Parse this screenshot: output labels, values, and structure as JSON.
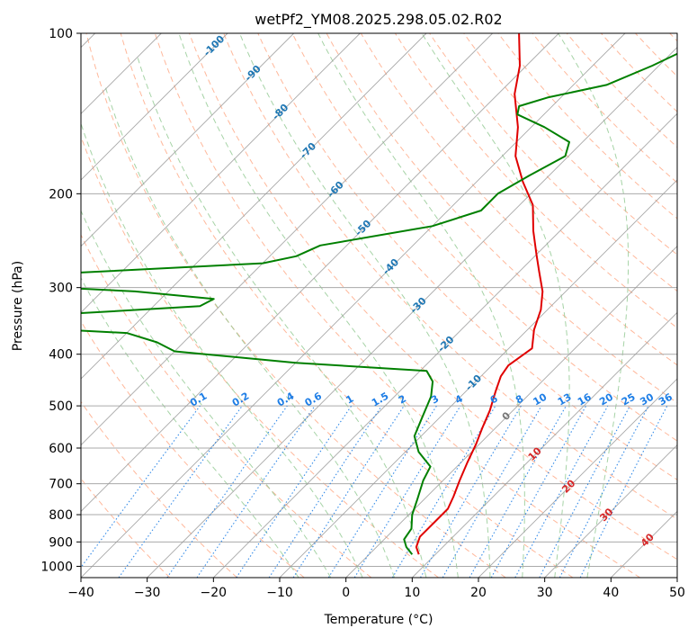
{
  "chart_data": {
    "type": "line",
    "title": "wetPf2_YM08.2025.298.05.02.R02",
    "xlabel": "Temperature (°C)",
    "ylabel": "Pressure (hPa)",
    "xlim": [
      -40,
      50
    ],
    "ylim": [
      1050,
      100
    ],
    "y_scale": "log",
    "skew": true,
    "grid": true,
    "x_ticks": [
      -40,
      -30,
      -20,
      -10,
      0,
      10,
      20,
      30,
      40,
      50
    ],
    "y_ticks": [
      100,
      200,
      300,
      400,
      500,
      600,
      700,
      800,
      900,
      1000
    ],
    "series": [
      {
        "color": "#e00000",
        "points": [
          {
            "p": 950,
            "t": 7.5
          },
          {
            "p": 920,
            "t": 6.0
          },
          {
            "p": 880,
            "t": 5.0
          },
          {
            "p": 830,
            "t": 5.0
          },
          {
            "p": 780,
            "t": 5.0
          },
          {
            "p": 740,
            "t": 4.0
          },
          {
            "p": 690,
            "t": 2.5
          },
          {
            "p": 640,
            "t": 1.0
          },
          {
            "p": 590,
            "t": -0.5
          },
          {
            "p": 550,
            "t": -2.0
          },
          {
            "p": 510,
            "t": -3.5
          },
          {
            "p": 470,
            "t": -5.5
          },
          {
            "p": 440,
            "t": -7.0
          },
          {
            "p": 420,
            "t": -7.5
          },
          {
            "p": 390,
            "t": -6.5
          },
          {
            "p": 360,
            "t": -9.0
          },
          {
            "p": 330,
            "t": -11.0
          },
          {
            "p": 305,
            "t": -13.5
          },
          {
            "p": 280,
            "t": -17.0
          },
          {
            "p": 260,
            "t": -20.0
          },
          {
            "p": 235,
            "t": -24.0
          },
          {
            "p": 210,
            "t": -28.0
          },
          {
            "p": 190,
            "t": -33.0
          },
          {
            "p": 170,
            "t": -38.0
          },
          {
            "p": 150,
            "t": -42.0
          },
          {
            "p": 130,
            "t": -47.5
          },
          {
            "p": 115,
            "t": -51.0
          },
          {
            "p": 100,
            "t": -56.0
          }
        ]
      },
      {
        "color": "#008000",
        "points": [
          {
            "p": 950,
            "t": 6.5
          },
          {
            "p": 920,
            "t": 4.5
          },
          {
            "p": 890,
            "t": 3.0
          },
          {
            "p": 850,
            "t": 2.5
          },
          {
            "p": 800,
            "t": 0.5
          },
          {
            "p": 750,
            "t": -1.0
          },
          {
            "p": 690,
            "t": -3.0
          },
          {
            "p": 650,
            "t": -4.0
          },
          {
            "p": 610,
            "t": -8.0
          },
          {
            "p": 570,
            "t": -11.0
          },
          {
            "p": 530,
            "t": -12.5
          },
          {
            "p": 480,
            "t": -14.5
          },
          {
            "p": 450,
            "t": -16.5
          },
          {
            "p": 430,
            "t": -19.0
          },
          {
            "p": 415,
            "t": -40.0
          },
          {
            "p": 395,
            "t": -60.0
          },
          {
            "p": 380,
            "t": -64.0
          },
          {
            "p": 365,
            "t": -70.0
          },
          {
            "p": 355,
            "t": -90.0
          },
          {
            "p": 335,
            "t": -80.0
          },
          {
            "p": 325,
            "t": -63.0
          },
          {
            "p": 315,
            "t": -62.0
          },
          {
            "p": 305,
            "t": -75.0
          },
          {
            "p": 298,
            "t": -92.0
          },
          {
            "p": 282,
            "t": -88.0
          },
          {
            "p": 270,
            "t": -60.0
          },
          {
            "p": 262,
            "t": -56.0
          },
          {
            "p": 250,
            "t": -54.0
          },
          {
            "p": 230,
            "t": -40.0
          },
          {
            "p": 215,
            "t": -35.0
          },
          {
            "p": 200,
            "t": -35.0
          },
          {
            "p": 185,
            "t": -33.0
          },
          {
            "p": 170,
            "t": -30.5
          },
          {
            "p": 160,
            "t": -32.0
          },
          {
            "p": 150,
            "t": -38.0
          },
          {
            "p": 142,
            "t": -44.0
          },
          {
            "p": 137,
            "t": -45.0
          },
          {
            "p": 132,
            "t": -42.0
          },
          {
            "p": 125,
            "t": -35.0
          },
          {
            "p": 115,
            "t": -31.0
          },
          {
            "p": 105,
            "t": -27.5
          },
          {
            "p": 100,
            "t": -26.0
          }
        ]
      }
    ],
    "dry_adiabats": [
      -30,
      -20,
      -10,
      0,
      10,
      20,
      30,
      40,
      50,
      60,
      70,
      80,
      90,
      100,
      110,
      120,
      130,
      140,
      150,
      160,
      170,
      180,
      190,
      200,
      210,
      220
    ],
    "moist_adiabats": [
      -10,
      -5,
      0,
      5,
      10,
      15,
      20,
      25,
      30,
      35
    ],
    "mixing_ratio_lines": [
      "0.1",
      "0.2",
      "0.4",
      "0.6",
      "1",
      "1.5",
      "2",
      "3",
      "4",
      "6",
      "8",
      "10",
      "13",
      "16",
      "20",
      "25",
      "30",
      "36"
    ],
    "isotherm_labels": {
      "blue": [
        "-100",
        "-90",
        "-80",
        "-70",
        "-60",
        "-50",
        "-40",
        "-30",
        "-20",
        "-10"
      ],
      "gray": [
        "0"
      ],
      "red": [
        "10",
        "20",
        "30",
        "40"
      ]
    },
    "colors": {
      "temperature": "#e00000",
      "dewpoint": "#008000",
      "isotherms": "#999999",
      "isobars": "#aaaaaa",
      "dry_adiabats": "#ffa07a",
      "moist_adiabats": "#90c890",
      "mixing_ratio": "#1e7ee6",
      "label_cold": "#1f77b4",
      "label_zero": "#777777",
      "label_warm": "#d62728"
    }
  }
}
